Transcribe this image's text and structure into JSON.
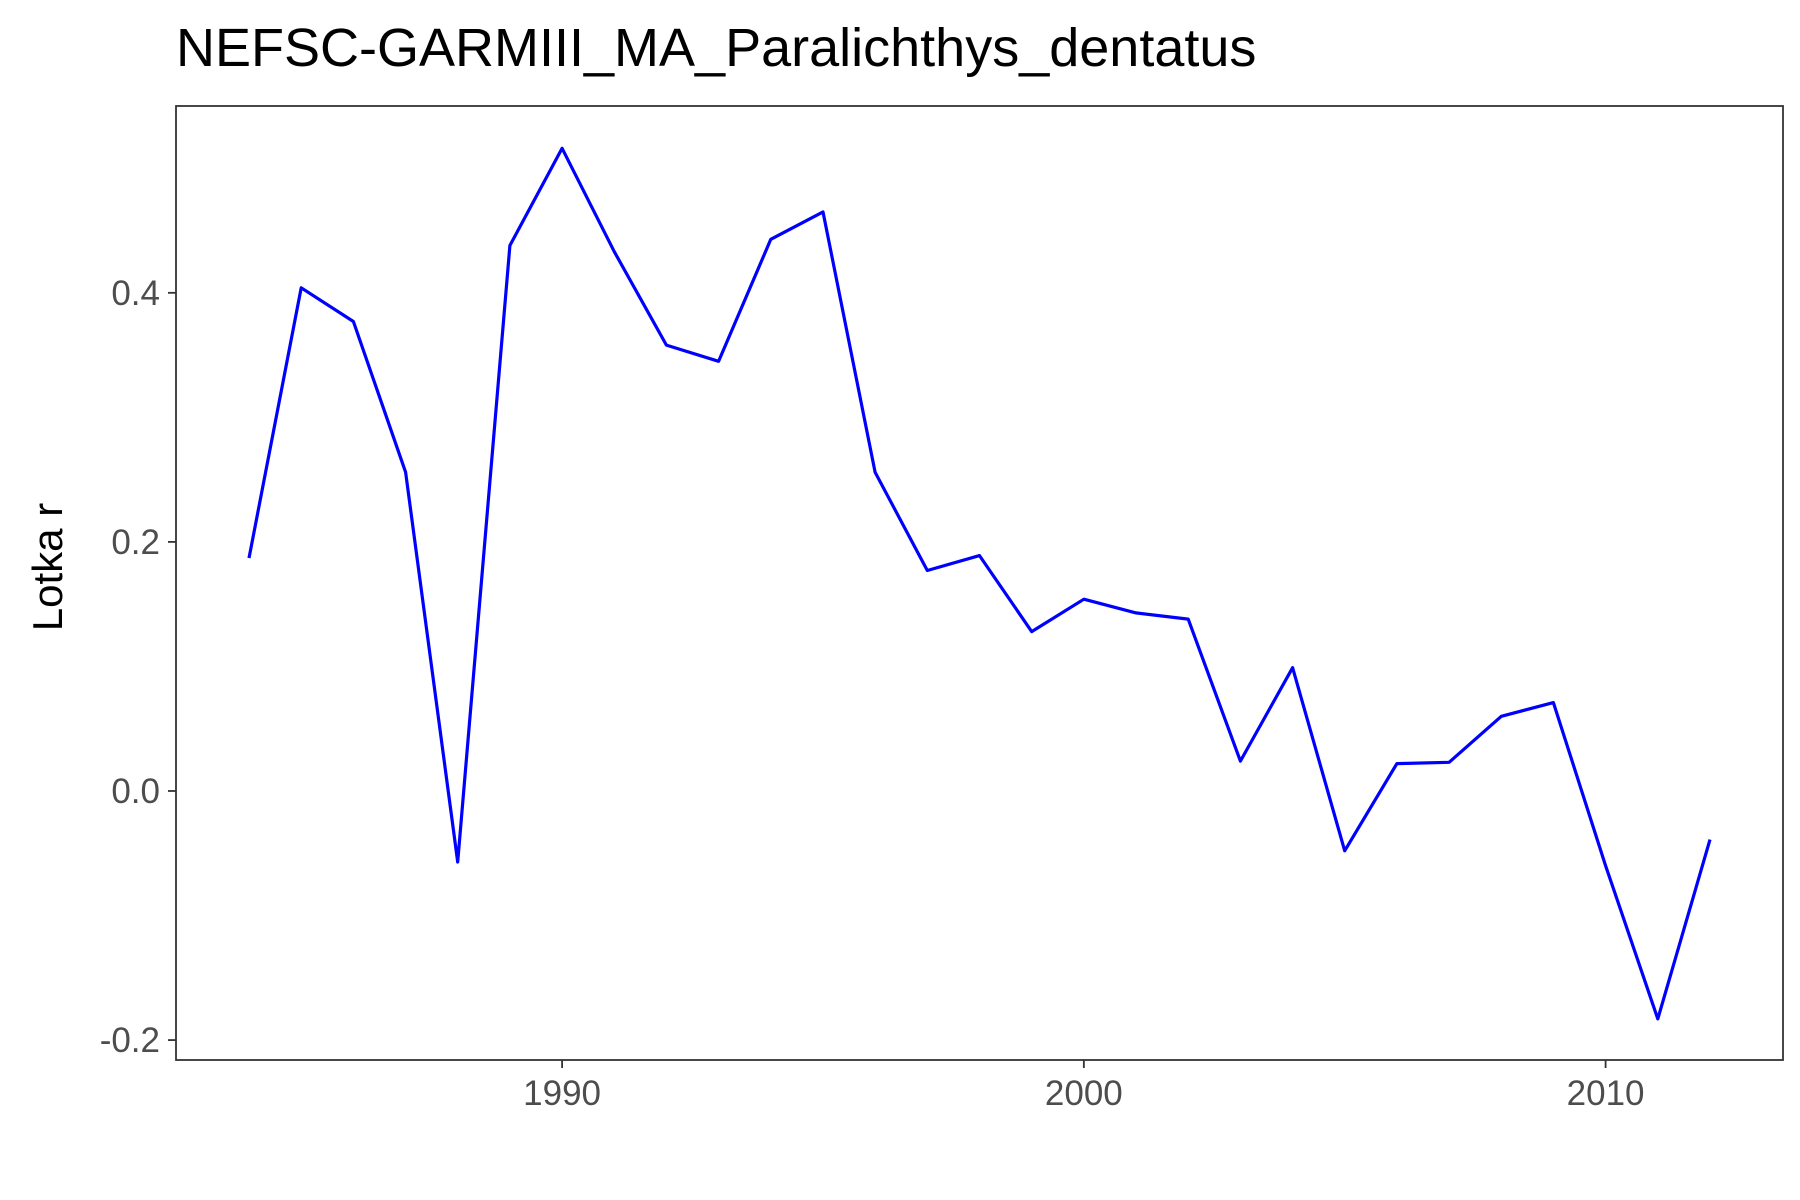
{
  "chart_data": {
    "type": "line",
    "title": "NEFSC-GARMIII_MA_Paralichthys_dentatus",
    "xlabel": "",
    "ylabel": "Lotka r",
    "xlim": [
      1982.6,
      2013.4
    ],
    "ylim": [
      -0.216,
      0.55
    ],
    "x_ticks": [
      1990,
      2000,
      2010
    ],
    "x_tick_labels": [
      "1990",
      "2000",
      "2010"
    ],
    "y_ticks": [
      -0.2,
      0.0,
      0.2,
      0.4
    ],
    "y_tick_labels": [
      "-0.2",
      "0.0",
      "0.2",
      "0.4"
    ],
    "grid": false,
    "legend": "none",
    "line_color": "#0000ff",
    "series": [
      {
        "x": [
          1984,
          1985,
          1986,
          1987,
          1988,
          1989,
          1990,
          1991,
          1992,
          1993,
          1994,
          1995,
          1996,
          1997,
          1998,
          1999,
          2000,
          2001,
          2002,
          2003,
          2004,
          2005,
          2006,
          2007,
          2008,
          2009,
          2010,
          2011,
          2012
        ],
        "values": [
          0.187,
          0.404,
          0.377,
          0.256,
          -0.057,
          0.438,
          0.516,
          0.433,
          0.358,
          0.345,
          0.443,
          0.465,
          0.256,
          0.177,
          0.189,
          0.128,
          0.154,
          0.143,
          0.138,
          0.024,
          0.099,
          -0.048,
          0.022,
          0.023,
          0.06,
          0.071,
          -0.06,
          -0.183,
          -0.039
        ]
      }
    ]
  }
}
